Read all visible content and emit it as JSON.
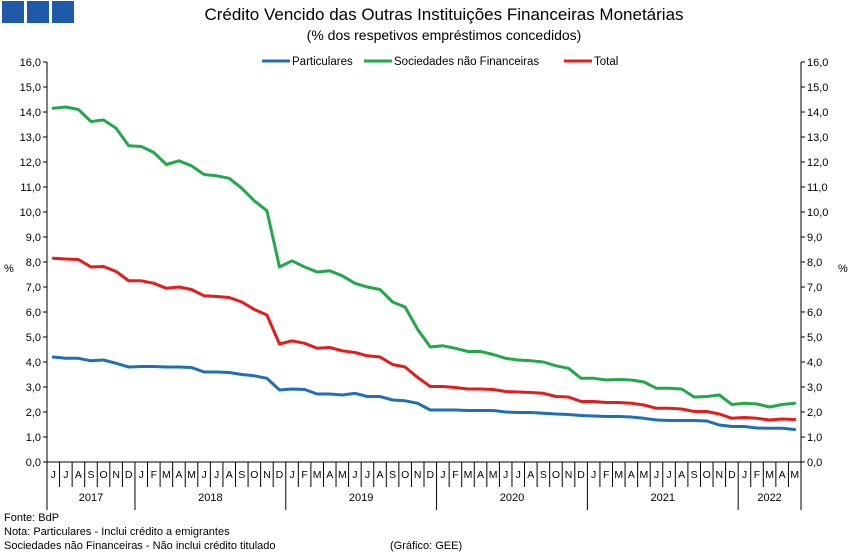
{
  "logo_color": "#1f5aa8",
  "chart_data": {
    "type": "line",
    "title": "Crédito Vencido das Outras Instituições Financeiras Monetárias",
    "subtitle": "(% dos respetivos empréstimos concedidos)",
    "ylabel_left": "%",
    "ylabel_right": "%",
    "ylim": [
      0,
      16
    ],
    "yticks": [
      "0,0",
      "1,0",
      "2,0",
      "3,0",
      "4,0",
      "5,0",
      "6,0",
      "7,0",
      "8,0",
      "9,0",
      "10,0",
      "11,0",
      "12,0",
      "13,0",
      "14,0",
      "15,0",
      "16,0"
    ],
    "grid": false,
    "legend_position": "top",
    "months": [
      "J",
      "J",
      "A",
      "S",
      "O",
      "N",
      "D",
      "J",
      "F",
      "M",
      "A",
      "M",
      "J",
      "J",
      "A",
      "S",
      "O",
      "N",
      "D",
      "J",
      "F",
      "M",
      "A",
      "M",
      "J",
      "J",
      "A",
      "S",
      "O",
      "N",
      "D",
      "J",
      "F",
      "M",
      "A",
      "M",
      "J",
      "J",
      "A",
      "S",
      "O",
      "N",
      "D",
      "J",
      "F",
      "M",
      "A",
      "M",
      "J",
      "J",
      "A",
      "S",
      "O",
      "N",
      "D",
      "J",
      "F",
      "M",
      "A",
      "M"
    ],
    "years": [
      {
        "label": "2017",
        "start": 0,
        "end": 6
      },
      {
        "label": "2018",
        "start": 7,
        "end": 18
      },
      {
        "label": "2019",
        "start": 19,
        "end": 30
      },
      {
        "label": "2020",
        "start": 31,
        "end": 42
      },
      {
        "label": "2021",
        "start": 43,
        "end": 54
      },
      {
        "label": "2022",
        "start": 55,
        "end": 59
      }
    ],
    "series": [
      {
        "name": "Particulares",
        "color": "#1f6fb4",
        "values": [
          4.2,
          4.15,
          4.15,
          4.05,
          4.08,
          3.95,
          3.8,
          3.82,
          3.82,
          3.8,
          3.8,
          3.78,
          3.6,
          3.6,
          3.58,
          3.5,
          3.45,
          3.35,
          2.88,
          2.92,
          2.9,
          2.72,
          2.72,
          2.68,
          2.75,
          2.62,
          2.62,
          2.48,
          2.45,
          2.35,
          2.08,
          2.08,
          2.08,
          2.06,
          2.06,
          2.06,
          2.0,
          1.98,
          1.98,
          1.95,
          1.92,
          1.9,
          1.86,
          1.84,
          1.82,
          1.82,
          1.8,
          1.75,
          1.68,
          1.66,
          1.66,
          1.66,
          1.64,
          1.48,
          1.42,
          1.42,
          1.36,
          1.35,
          1.35,
          1.3
        ]
      },
      {
        "name": "Sociedades não Financeiras",
        "color": "#22a84a",
        "values": [
          14.15,
          14.2,
          14.1,
          13.62,
          13.68,
          13.35,
          12.65,
          12.62,
          12.38,
          11.9,
          12.05,
          11.85,
          11.5,
          11.45,
          11.35,
          10.95,
          10.45,
          10.05,
          7.8,
          8.05,
          7.8,
          7.6,
          7.65,
          7.45,
          7.15,
          7.0,
          6.9,
          6.4,
          6.2,
          5.3,
          4.6,
          4.65,
          4.55,
          4.42,
          4.42,
          4.3,
          4.15,
          4.08,
          4.05,
          4.0,
          3.85,
          3.75,
          3.35,
          3.35,
          3.28,
          3.3,
          3.28,
          3.2,
          2.95,
          2.95,
          2.92,
          2.6,
          2.62,
          2.68,
          2.3,
          2.35,
          2.32,
          2.2,
          2.3,
          2.35
        ]
      },
      {
        "name": "Total",
        "color": "#e41c1c",
        "values": [
          8.15,
          8.12,
          8.1,
          7.8,
          7.82,
          7.62,
          7.25,
          7.25,
          7.15,
          6.95,
          7.0,
          6.9,
          6.65,
          6.62,
          6.58,
          6.4,
          6.1,
          5.88,
          4.72,
          4.85,
          4.75,
          4.55,
          4.58,
          4.45,
          4.38,
          4.25,
          4.2,
          3.9,
          3.8,
          3.38,
          3.02,
          3.02,
          2.98,
          2.92,
          2.92,
          2.9,
          2.82,
          2.8,
          2.78,
          2.75,
          2.62,
          2.6,
          2.42,
          2.42,
          2.38,
          2.38,
          2.35,
          2.28,
          2.15,
          2.15,
          2.12,
          2.02,
          2.02,
          1.92,
          1.75,
          1.78,
          1.75,
          1.68,
          1.72,
          1.7
        ]
      }
    ]
  },
  "footer": {
    "source": "Fonte: BdP",
    "note1": "Nota: Particulares - Inclui crédito a emigrantes",
    "note2": "Sociedades não Financeiras - Não inclui crédito titulado",
    "credit": "(Gráfico: GEE)"
  }
}
